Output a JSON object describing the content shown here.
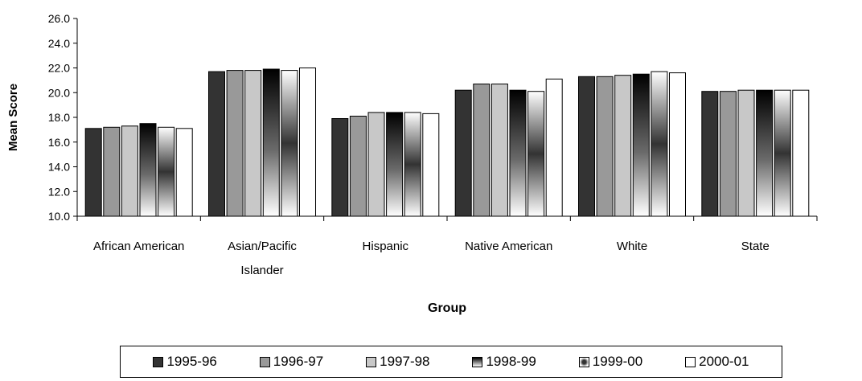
{
  "chart_data": {
    "type": "bar",
    "xlabel": "Group",
    "ylabel": "Mean Score",
    "ylim": [
      10.0,
      26.0
    ],
    "yticks": [
      "10.0",
      "12.0",
      "14.0",
      "16.0",
      "18.0",
      "20.0",
      "22.0",
      "24.0",
      "26.0"
    ],
    "grid": false,
    "legend_position": "bottom",
    "categories": [
      [
        "African American"
      ],
      [
        "Asian/Pacific",
        "Islander"
      ],
      [
        "Hispanic"
      ],
      [
        "Native American"
      ],
      [
        "White"
      ],
      [
        "State"
      ]
    ],
    "series": [
      {
        "name": "1995-96",
        "color": "#333333",
        "style": "solid",
        "values": [
          17.1,
          21.7,
          17.9,
          20.2,
          21.3,
          20.1
        ]
      },
      {
        "name": "1996-97",
        "color": "#999999",
        "style": "solid",
        "values": [
          17.2,
          21.8,
          18.1,
          20.7,
          21.3,
          20.1
        ]
      },
      {
        "name": "1997-98",
        "color": "#c8c8c8",
        "style": "solid",
        "values": [
          17.3,
          21.8,
          18.4,
          20.7,
          21.4,
          20.2
        ]
      },
      {
        "name": "1998-99",
        "color": "#000000",
        "style": "gradient-dark-top",
        "values": [
          17.5,
          21.9,
          18.4,
          20.2,
          21.5,
          20.2
        ]
      },
      {
        "name": "1999-00",
        "color": "#555555",
        "style": "gradient-center-dark",
        "values": [
          17.2,
          21.8,
          18.4,
          20.1,
          21.7,
          20.2
        ]
      },
      {
        "name": "2000-01",
        "color": "#ffffff",
        "style": "solid",
        "values": [
          17.1,
          22.0,
          18.3,
          21.1,
          21.6,
          20.2
        ]
      }
    ]
  }
}
